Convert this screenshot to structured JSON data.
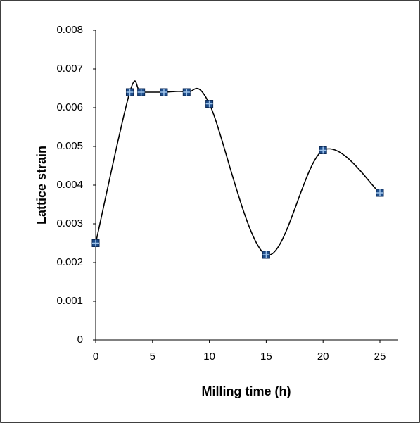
{
  "chart_data": {
    "type": "line",
    "x_label": "Milling time (h)",
    "y_label": "Lattice strain",
    "x": [
      0,
      3,
      4,
      6,
      8,
      10,
      15,
      20,
      25
    ],
    "series": [
      {
        "name": "Lattice strain",
        "color": "#000000",
        "marker_color": "#1f4e8c",
        "values": [
          0.0025,
          0.0064,
          0.0064,
          0.0064,
          0.0064,
          0.0061,
          0.0022,
          0.0049,
          0.0038
        ]
      }
    ],
    "xlim": [
      0,
      25
    ],
    "xticks": [
      0,
      5,
      10,
      15,
      20,
      25
    ],
    "ylim": [
      0,
      0.008
    ],
    "yticks": [
      0,
      0.001,
      0.002,
      0.003,
      0.004,
      0.005,
      0.006,
      0.007,
      0.008
    ],
    "smooth": true,
    "grid": false
  }
}
